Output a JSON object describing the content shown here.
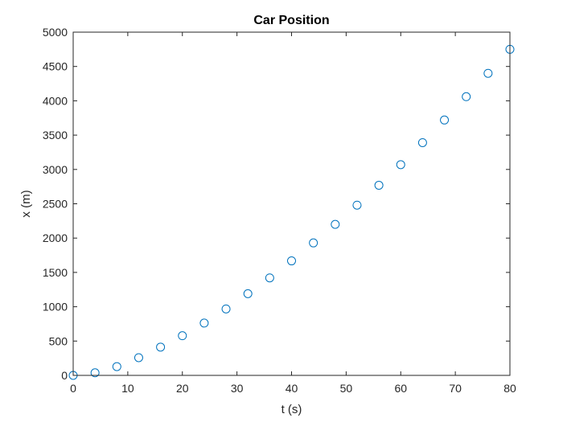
{
  "chart_data": {
    "type": "scatter",
    "title": "Car Position",
    "xlabel": "t (s)",
    "ylabel": "x (m)",
    "xlim": [
      0,
      80
    ],
    "ylim": [
      0,
      5000
    ],
    "xticks": [
      0,
      10,
      20,
      30,
      40,
      50,
      60,
      70,
      80
    ],
    "yticks": [
      0,
      500,
      1000,
      1500,
      2000,
      2500,
      3000,
      3500,
      4000,
      4500,
      5000
    ],
    "grid": false,
    "marker": "open-circle",
    "marker_color": "#0072BD",
    "series": [
      {
        "x": [
          0,
          4,
          8,
          12,
          16,
          20,
          24,
          28,
          32,
          36,
          40,
          44,
          48,
          52,
          56,
          60,
          64,
          68,
          72,
          76,
          80
        ],
        "y": [
          0,
          38,
          128,
          258,
          412,
          578,
          762,
          968,
          1190,
          1420,
          1668,
          1930,
          2200,
          2480,
          2770,
          3070,
          3390,
          3720,
          4060,
          4400,
          4750
        ]
      }
    ]
  }
}
